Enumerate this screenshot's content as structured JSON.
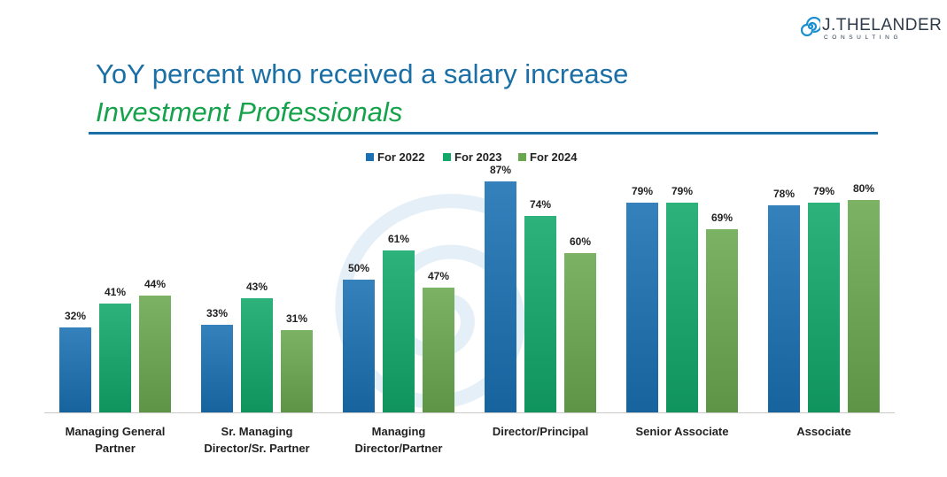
{
  "brand": {
    "name": "J.THELANDER",
    "tagline": "CONSULTING"
  },
  "header": {
    "title": "YoY percent who received a salary increase",
    "subtitle": "Investment Professionals"
  },
  "colors": {
    "title": "#1a6fa6",
    "subtitle": "#14a34a",
    "rule": "#1a6fa6",
    "series": [
      "#1a70b3",
      "#12a86a",
      "#6aa84f"
    ],
    "watermark": "#cfe2f3"
  },
  "chart_data": {
    "type": "bar",
    "categories": [
      [
        "Managing General",
        "Partner"
      ],
      [
        "Sr. Managing",
        "Director/Sr. Partner"
      ],
      [
        "Managing",
        "Director/Partner"
      ],
      [
        "Director/Principal"
      ],
      [
        "Senior Associate"
      ],
      [
        "Associate"
      ]
    ],
    "series": [
      {
        "name": "For 2022",
        "values": [
          32,
          33,
          50,
          87,
          79,
          78
        ]
      },
      {
        "name": "For 2023",
        "values": [
          41,
          43,
          61,
          74,
          79,
          79
        ]
      },
      {
        "name": "For 2024",
        "values": [
          44,
          31,
          47,
          60,
          69,
          80
        ]
      }
    ],
    "value_suffix": "%",
    "ylim": [
      0,
      100
    ],
    "legend": "top-center",
    "grid": false
  }
}
